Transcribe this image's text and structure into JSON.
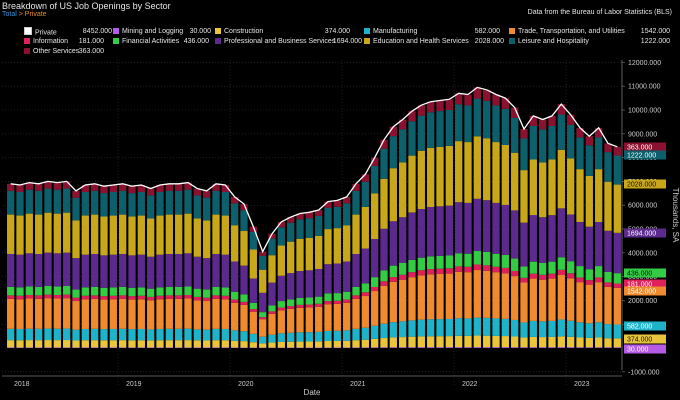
{
  "header": {
    "title": "Breakdown of US Job Openings by Sector",
    "crumb_total": "Total",
    "crumb_sep": " > ",
    "crumb_private": "Private",
    "source": "Data from the Bureau of Labor Statistics (BLS)"
  },
  "legend": [
    {
      "label": "Private",
      "value": "8452.000",
      "color": "#ffffff"
    },
    {
      "label": "Mining and Logging",
      "value": "30.000",
      "color": "#b45ce6"
    },
    {
      "label": "Construction",
      "value": "374.000",
      "color": "#e8c53a"
    },
    {
      "label": "Manufacturing",
      "value": "582.000",
      "color": "#1fb3c9"
    },
    {
      "label": "Trade, Transportation, and Utilities",
      "value": "1542.000",
      "color": "#ef8a2e"
    },
    {
      "label": "Information",
      "value": "181.000",
      "color": "#e0205a"
    },
    {
      "label": "Financial Activities",
      "value": "436.000",
      "color": "#33cc44"
    },
    {
      "label": "Professional and Business Services",
      "value": "1694.000",
      "color": "#5b2a8c"
    },
    {
      "label": "Education and Health Services",
      "value": "2028.000",
      "color": "#c8a81a"
    },
    {
      "label": "Leisure and Hospitality",
      "value": "1222.000",
      "color": "#0d5f6b"
    },
    {
      "label": "Other Services",
      "value": "363.000",
      "color": "#8a1230"
    }
  ],
  "chart_data": {
    "type": "bar",
    "stacked": true,
    "title": "Breakdown of US Job Openings by Sector",
    "xlabel": "Date",
    "ylabel": "Thousands, SA",
    "ylim": [
      -1000,
      12000
    ],
    "yticks": [
      -1000,
      0,
      1000,
      2000,
      3000,
      4000,
      5000,
      6000,
      7000,
      8000,
      9000,
      10000,
      11000,
      12000
    ],
    "ytick_labels": [
      "-1000.000",
      "",
      "1000.000",
      "2000.000",
      "3000.000",
      "4000.000",
      "5000.000",
      "6000.000",
      "7000.000",
      "8000.000",
      "9000.000",
      "10000.000",
      "11000.000",
      "12000.000"
    ],
    "year_labels": [
      "2018",
      "2019",
      "2020",
      "2021",
      "2022",
      "2023"
    ],
    "year_start_index": [
      0,
      12,
      24,
      36,
      48,
      60
    ],
    "first_period": "2018-01",
    "n_periods": 66,
    "total_label": "Private",
    "totals": [
      6900,
      6850,
      6950,
      6900,
      7000,
      6950,
      7000,
      6600,
      6850,
      6900,
      6800,
      6850,
      6900,
      6800,
      6850,
      6700,
      6850,
      6900,
      6900,
      6950,
      6700,
      6600,
      6900,
      6850,
      6350,
      6050,
      5100,
      4050,
      4800,
      5300,
      5500,
      5650,
      5700,
      5800,
      6150,
      6200,
      6350,
      6900,
      7300,
      8000,
      8750,
      9300,
      9600,
      9950,
      10200,
      10350,
      10400,
      10450,
      10700,
      10650,
      10950,
      10850,
      10650,
      10500,
      10100,
      9200,
      9750,
      9600,
      9750,
      10250,
      9800,
      9250,
      8900,
      9250,
      8600,
      8452
    ],
    "shares": [
      {
        "name": "Mining and Logging",
        "share": 0.0035
      },
      {
        "name": "Construction",
        "share": 0.0443
      },
      {
        "name": "Manufacturing",
        "share": 0.0689
      },
      {
        "name": "Trade, Transportation, and Utilities",
        "share": 0.1824
      },
      {
        "name": "Information",
        "share": 0.0214
      },
      {
        "name": "Financial Activities",
        "share": 0.0516
      },
      {
        "name": "Professional and Business Services",
        "share": 0.2004
      },
      {
        "name": "Education and Health Services",
        "share": 0.2399
      },
      {
        "name": "Leisure and Hospitality",
        "share": 0.1446
      },
      {
        "name": "Other Services",
        "share": 0.0429
      }
    ],
    "last_values": {
      "Private": 8452,
      "Mining and Logging": 30,
      "Construction": 374,
      "Manufacturing": 582,
      "Trade, Transportation, and Utilities": 1542,
      "Information": 181,
      "Financial Activities": 436,
      "Professional and Business Services": 1694,
      "Education and Health Services": 2028,
      "Leisure and Hospitality": 1222,
      "Other Services": 363
    }
  }
}
